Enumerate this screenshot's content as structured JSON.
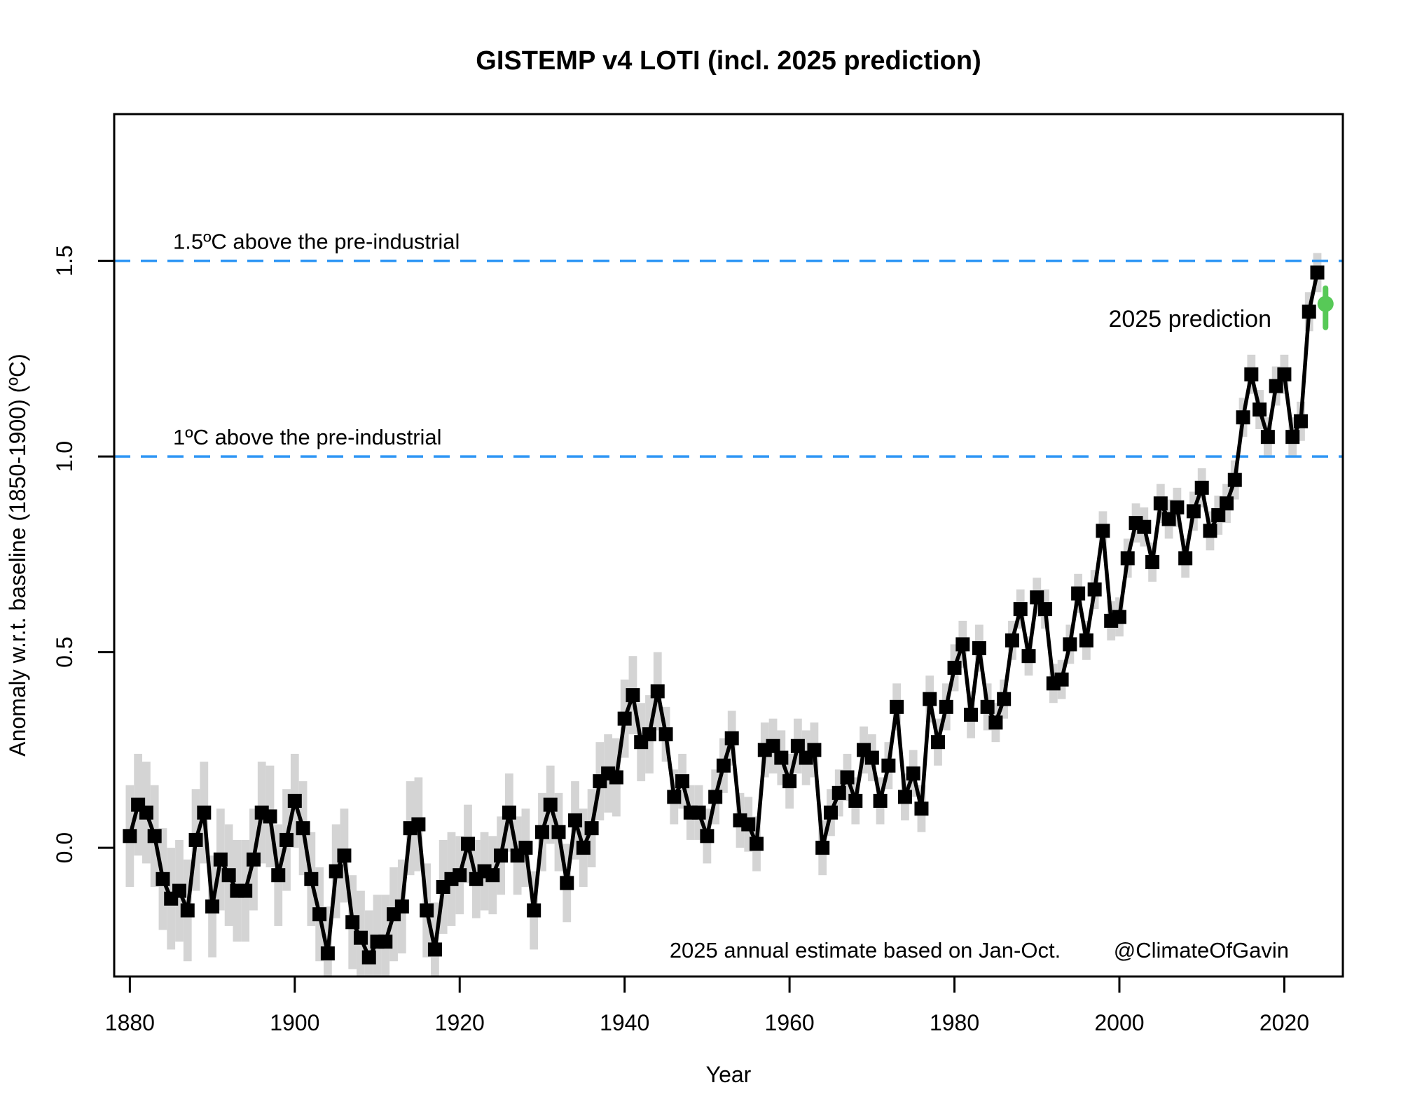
{
  "chart_data": {
    "type": "line",
    "title": "GISTEMP v4 LOTI (incl. 2025 prediction)",
    "x_label": "Year",
    "y_label": "Anomaly w.r.t. baseline (1850-1900) (ºC)",
    "x_ticks": [
      1880,
      1900,
      1920,
      1940,
      1960,
      1980,
      2000,
      2020
    ],
    "y_tick_values": [
      0.0,
      0.5,
      1.0,
      1.5
    ],
    "y_tick_labels": [
      "0.0",
      "0.5",
      "1.0",
      "1.5"
    ],
    "x_range": [
      1878.1,
      2027.1
    ],
    "y_range": [
      -0.329,
      1.875
    ],
    "grid": "off",
    "start_year": 1880,
    "values": [
      0.03,
      0.11,
      0.09,
      0.03,
      -0.08,
      -0.13,
      -0.11,
      -0.16,
      0.02,
      0.09,
      -0.15,
      -0.03,
      -0.07,
      -0.11,
      -0.11,
      -0.03,
      0.09,
      0.08,
      -0.07,
      0.02,
      0.12,
      0.05,
      -0.08,
      -0.17,
      -0.27,
      -0.06,
      -0.02,
      -0.19,
      -0.23,
      -0.28,
      -0.24,
      -0.24,
      -0.17,
      -0.15,
      0.05,
      0.06,
      -0.16,
      -0.26,
      -0.1,
      -0.08,
      -0.07,
      0.01,
      -0.08,
      -0.06,
      -0.07,
      -0.02,
      0.09,
      -0.02,
      0.0,
      -0.16,
      0.04,
      0.11,
      0.04,
      -0.09,
      0.07,
      0.0,
      0.05,
      0.17,
      0.19,
      0.18,
      0.33,
      0.39,
      0.27,
      0.29,
      0.4,
      0.29,
      0.13,
      0.17,
      0.09,
      0.09,
      0.03,
      0.13,
      0.21,
      0.28,
      0.07,
      0.06,
      0.01,
      0.25,
      0.26,
      0.23,
      0.17,
      0.26,
      0.23,
      0.25,
      0.0,
      0.09,
      0.14,
      0.18,
      0.12,
      0.25,
      0.23,
      0.12,
      0.21,
      0.36,
      0.13,
      0.19,
      0.1,
      0.38,
      0.27,
      0.36,
      0.46,
      0.52,
      0.34,
      0.51,
      0.36,
      0.32,
      0.38,
      0.53,
      0.61,
      0.49,
      0.64,
      0.61,
      0.42,
      0.43,
      0.52,
      0.65,
      0.53,
      0.66,
      0.81,
      0.58,
      0.59,
      0.74,
      0.83,
      0.82,
      0.73,
      0.88,
      0.84,
      0.87,
      0.74,
      0.86,
      0.92,
      0.81,
      0.85,
      0.88,
      0.94,
      1.1,
      1.21,
      1.12,
      1.05,
      1.18,
      1.21,
      1.05,
      1.09,
      1.37,
      1.47
    ],
    "uncertainty": [
      0.13,
      0.13,
      0.13,
      0.13,
      0.13,
      0.13,
      0.13,
      0.13,
      0.13,
      0.13,
      0.13,
      0.13,
      0.13,
      0.13,
      0.13,
      0.13,
      0.13,
      0.13,
      0.13,
      0.13,
      0.12,
      0.12,
      0.12,
      0.12,
      0.12,
      0.12,
      0.12,
      0.12,
      0.12,
      0.12,
      0.12,
      0.12,
      0.12,
      0.12,
      0.12,
      0.12,
      0.12,
      0.12,
      0.12,
      0.12,
      0.1,
      0.1,
      0.1,
      0.1,
      0.1,
      0.1,
      0.1,
      0.1,
      0.1,
      0.1,
      0.1,
      0.1,
      0.1,
      0.1,
      0.1,
      0.1,
      0.1,
      0.1,
      0.1,
      0.1,
      0.1,
      0.1,
      0.1,
      0.1,
      0.1,
      0.07,
      0.07,
      0.07,
      0.07,
      0.07,
      0.07,
      0.07,
      0.07,
      0.07,
      0.07,
      0.07,
      0.07,
      0.07,
      0.07,
      0.07,
      0.07,
      0.07,
      0.07,
      0.07,
      0.07,
      0.06,
      0.06,
      0.06,
      0.06,
      0.06,
      0.06,
      0.06,
      0.06,
      0.06,
      0.06,
      0.06,
      0.06,
      0.06,
      0.06,
      0.06,
      0.06,
      0.06,
      0.06,
      0.06,
      0.06,
      0.05,
      0.05,
      0.05,
      0.05,
      0.05,
      0.05,
      0.05,
      0.05,
      0.05,
      0.05,
      0.05,
      0.05,
      0.05,
      0.05,
      0.05,
      0.05,
      0.05,
      0.05,
      0.05,
      0.05,
      0.05,
      0.05,
      0.05,
      0.05,
      0.05,
      0.05,
      0.05,
      0.05,
      0.05,
      0.05,
      0.05,
      0.05,
      0.05,
      0.05,
      0.05,
      0.05,
      0.05,
      0.05,
      0.05,
      0.05
    ],
    "thresholds": [
      {
        "value": 1.5,
        "label": "1.5ºC above the pre-industrial"
      },
      {
        "value": 1.0,
        "label": "1ºC above the pre-industrial"
      }
    ],
    "prediction": {
      "year": 2025,
      "value": 1.39,
      "low": 1.33,
      "high": 1.43,
      "label": "2025 prediction"
    },
    "annotation": "2025 annual estimate based on Jan-Oct.",
    "credit": "@ClimateOfGavin",
    "colors": {
      "series": "#000000",
      "uncertainty_band": "#d4d4d4",
      "threshold": "#2E96F5",
      "prediction": "#57C957"
    }
  }
}
